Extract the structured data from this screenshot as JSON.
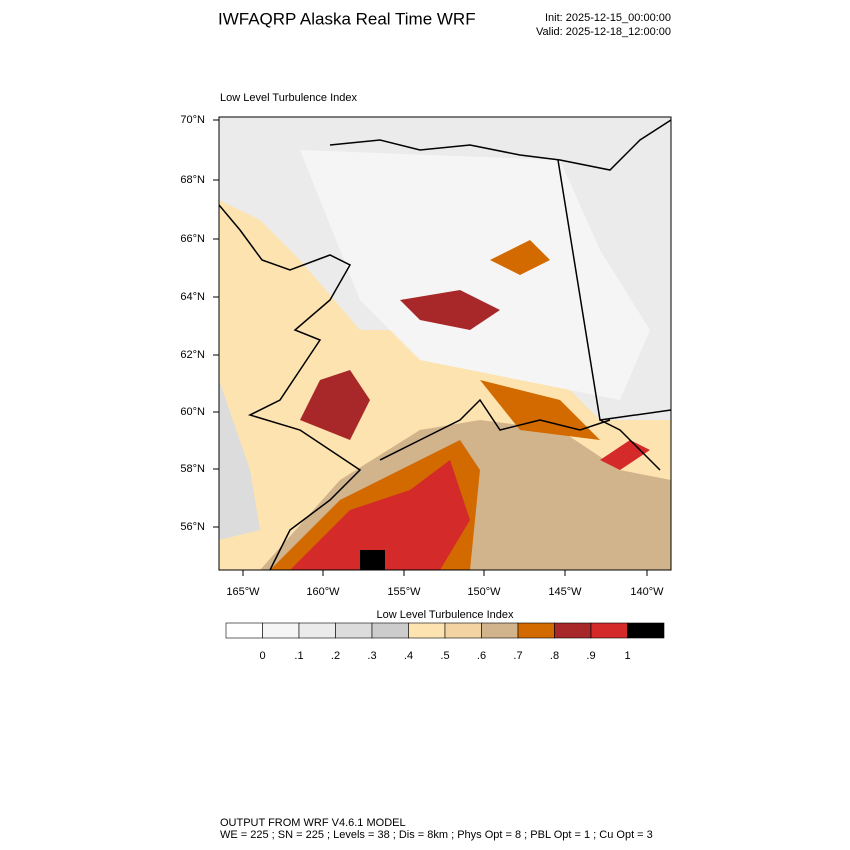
{
  "header": {
    "title": "IWFAQRP Alaska Real Time WRF",
    "init": "Init: 2025-12-15_00:00:00",
    "valid": "Valid: 2025-12-18_12:00:00"
  },
  "map": {
    "title": "Low Level Turbulence Index",
    "lat_labels": [
      "70°N",
      "68°N",
      "66°N",
      "64°N",
      "62°N",
      "60°N",
      "58°N",
      "56°N"
    ],
    "lon_labels": [
      "165°W",
      "160°W",
      "155°W",
      "150°W",
      "145°W",
      "140°W"
    ]
  },
  "colorbar": {
    "title": "Low Level Turbulence Index",
    "colors": [
      "#ffffff",
      "#f5f5f5",
      "#ebebeb",
      "#dcdcdc",
      "#cccccc",
      "#fde3b0",
      "#f3d3a2",
      "#d2b48c",
      "#d26a00",
      "#a8282a",
      "#d42a2a",
      "#000000"
    ],
    "labels": [
      "0",
      ".1",
      ".2",
      ".3",
      ".4",
      ".5",
      ".6",
      ".7",
      ".8",
      ".9",
      "1"
    ]
  },
  "footer": {
    "line1": "OUTPUT FROM WRF V4.6.1 MODEL",
    "line2": "WE = 225 ; SN = 225 ; Levels = 38 ; Dis = 8km ; Phys Opt = 8 ; PBL Opt = 1 ; Cu Opt = 3"
  }
}
